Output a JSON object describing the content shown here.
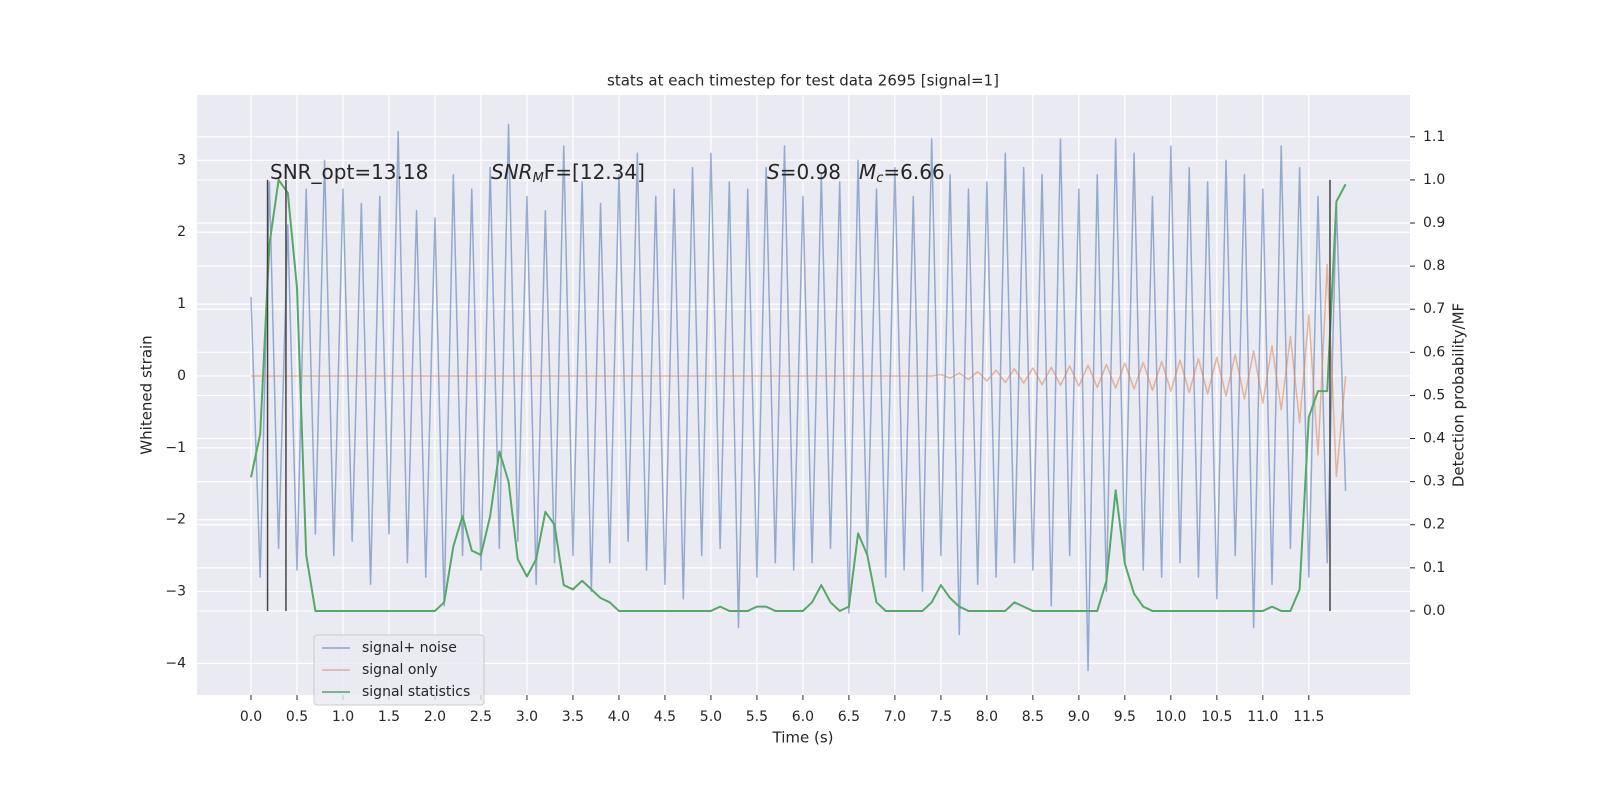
{
  "chart_data": {
    "type": "line",
    "title": "stats at each timestep for test data 2695 [signal=1]",
    "xlabel": "Time (s)",
    "ylabel": "Whitened strain",
    "y2label": "Detection probability/MF",
    "x": [
      0.0,
      0.1,
      0.2,
      0.3,
      0.4,
      0.5,
      0.6,
      0.7,
      0.8,
      0.9,
      1.0,
      1.1,
      1.2,
      1.3,
      1.4,
      1.5,
      1.6,
      1.7,
      1.8,
      1.9,
      2.0,
      2.1,
      2.2,
      2.3,
      2.4,
      2.5,
      2.6,
      2.7,
      2.8,
      2.9,
      3.0,
      3.1,
      3.2,
      3.3,
      3.4,
      3.5,
      3.6,
      3.7,
      3.8,
      3.9,
      4.0,
      4.1,
      4.2,
      4.3,
      4.4,
      4.5,
      4.6,
      4.7,
      4.8,
      4.9,
      5.0,
      5.1,
      5.2,
      5.3,
      5.4,
      5.5,
      5.6,
      5.7,
      5.8,
      5.9,
      6.0,
      6.1,
      6.2,
      6.3,
      6.4,
      6.5,
      6.6,
      6.7,
      6.8,
      6.9,
      7.0,
      7.1,
      7.2,
      7.3,
      7.4,
      7.5,
      7.6,
      7.7,
      7.8,
      7.9,
      8.0,
      8.1,
      8.2,
      8.3,
      8.4,
      8.5,
      8.6,
      8.7,
      8.8,
      8.9,
      9.0,
      9.1,
      9.2,
      9.3,
      9.4,
      9.5,
      9.6,
      9.7,
      9.8,
      9.9,
      10.0,
      10.1,
      10.2,
      10.3,
      10.4,
      10.5,
      10.6,
      10.7,
      10.8,
      10.9,
      11.0,
      11.1,
      11.2,
      11.3,
      11.4,
      11.5,
      11.6,
      11.7,
      11.8,
      11.9
    ],
    "series": [
      {
        "name": "signal+ noise",
        "color": "#4c72b0",
        "values": [
          1.1,
          -2.8,
          2.7,
          -2.4,
          2.1,
          -2.7,
          2.6,
          -2.2,
          3.0,
          -2.5,
          2.6,
          -2.3,
          2.4,
          -2.9,
          2.5,
          -2.2,
          3.4,
          -2.6,
          2.3,
          -2.8,
          2.2,
          -3.2,
          2.8,
          -2.5,
          2.6,
          -2.7,
          2.9,
          -2.4,
          3.5,
          -2.3,
          2.5,
          -2.9,
          2.3,
          -2.6,
          3.2,
          -2.5,
          2.7,
          -3.0,
          2.4,
          -2.6,
          2.8,
          -2.3,
          3.1,
          -2.7,
          2.5,
          -2.9,
          2.6,
          -3.1,
          2.9,
          -2.5,
          3.1,
          -2.4,
          2.7,
          -3.5,
          2.6,
          -2.8,
          2.9,
          -2.6,
          3.2,
          -2.7,
          2.5,
          -2.6,
          2.8,
          -2.4,
          2.7,
          -3.3,
          3.0,
          -2.5,
          2.6,
          -2.8,
          2.9,
          -2.7,
          2.5,
          -3.0,
          3.3,
          -2.5,
          2.8,
          -3.6,
          2.6,
          -2.9,
          2.7,
          -2.8,
          3.1,
          -2.6,
          2.9,
          -2.7,
          2.8,
          -3.2,
          3.3,
          -2.5,
          2.6,
          -4.1,
          2.8,
          -3.0,
          3.3,
          -2.6,
          3.1,
          -2.7,
          2.5,
          -2.8,
          3.2,
          -2.6,
          2.9,
          -2.8,
          2.7,
          -3.1,
          3.0,
          -2.5,
          2.8,
          -3.5,
          2.6,
          -2.9,
          3.2,
          -2.4,
          2.9,
          -2.8,
          2.5,
          -2.6,
          2.4,
          -1.6
        ]
      },
      {
        "name": "signal only",
        "color": "#dd8452",
        "values": [
          0,
          0,
          0,
          0,
          0,
          0,
          0,
          0,
          0,
          0,
          0,
          0,
          0,
          0,
          0,
          0,
          0,
          0,
          0,
          0,
          0,
          0,
          0,
          0,
          0,
          0,
          0,
          0,
          0,
          0,
          0,
          0,
          0,
          0,
          0,
          0,
          0,
          0,
          0,
          0,
          0,
          0,
          0,
          0,
          0,
          0,
          0,
          0,
          0,
          0,
          0,
          0,
          0,
          0,
          0,
          0,
          0,
          0,
          0,
          0,
          0,
          0,
          0,
          0,
          0,
          0,
          0,
          0,
          0,
          0,
          0,
          0,
          0,
          0,
          0,
          0.02,
          -0.03,
          0.04,
          -0.05,
          0.06,
          -0.07,
          0.08,
          -0.09,
          0.1,
          -0.1,
          0.11,
          -0.12,
          0.12,
          -0.13,
          0.14,
          -0.14,
          0.15,
          -0.16,
          0.16,
          -0.17,
          0.18,
          -0.18,
          0.19,
          -0.2,
          0.2,
          -0.21,
          0.22,
          -0.23,
          0.24,
          -0.25,
          0.26,
          -0.28,
          0.3,
          -0.32,
          0.35,
          -0.38,
          0.42,
          -0.47,
          0.55,
          -0.65,
          0.85,
          -1.1,
          1.55,
          -1.4,
          0
        ]
      },
      {
        "name": "signal statistics",
        "color": "#55a868",
        "axis": "y2",
        "values": [
          0.31,
          0.41,
          0.85,
          1.0,
          0.97,
          0.75,
          0.13,
          0,
          0,
          0,
          0,
          0,
          0,
          0,
          0,
          0,
          0,
          0,
          0,
          0,
          0,
          0.02,
          0.15,
          0.22,
          0.14,
          0.13,
          0.22,
          0.37,
          0.3,
          0.12,
          0.08,
          0.12,
          0.23,
          0.2,
          0.06,
          0.05,
          0.07,
          0.05,
          0.03,
          0.02,
          0,
          0,
          0,
          0,
          0,
          0,
          0,
          0,
          0,
          0,
          0,
          0.01,
          0,
          0,
          0,
          0.01,
          0.01,
          0,
          0,
          0,
          0,
          0.02,
          0.06,
          0.02,
          0,
          0.01,
          0.18,
          0.13,
          0.02,
          0,
          0,
          0,
          0,
          0,
          0.02,
          0.06,
          0.03,
          0.01,
          0,
          0,
          0,
          0,
          0,
          0.02,
          0.01,
          0,
          0,
          0,
          0,
          0,
          0,
          0,
          0,
          0.07,
          0.28,
          0.11,
          0.04,
          0.01,
          0,
          0,
          0,
          0,
          0,
          0,
          0,
          0,
          0,
          0,
          0,
          0,
          0,
          0.01,
          0,
          0,
          0.05,
          0.45,
          0.51,
          0.51,
          0.95,
          0.99
        ]
      }
    ],
    "vlines": {
      "x": [
        0.18,
        0.38,
        11.73
      ],
      "ymin": 0,
      "ymax": 1,
      "axis": "y2",
      "color": "#444444"
    },
    "annotations": [
      [
        "SNR_opt=13.18"
      ],
      [
        "SNR",
        "M",
        "F=[12.34]"
      ],
      [
        "S",
        "=0.98"
      ],
      [
        "M",
        "c",
        "=6.66"
      ]
    ],
    "xlim": [
      -0.587,
      12.6
    ],
    "xticks": [
      {
        "value": 0,
        "label": "0.0"
      },
      {
        "value": 0.5,
        "label": "0.5"
      },
      {
        "value": 1,
        "label": "1.0"
      },
      {
        "value": 1.5,
        "label": "1.5"
      },
      {
        "value": 2,
        "label": "2.0"
      },
      {
        "value": 2.5,
        "label": "2.5"
      },
      {
        "value": 3,
        "label": "3.0"
      },
      {
        "value": 3.5,
        "label": "3.5"
      },
      {
        "value": 4,
        "label": "4.0"
      },
      {
        "value": 4.5,
        "label": "4.5"
      },
      {
        "value": 5,
        "label": "5.0"
      },
      {
        "value": 5.5,
        "label": "5.5"
      },
      {
        "value": 6,
        "label": "6.0"
      },
      {
        "value": 6.5,
        "label": "6.5"
      },
      {
        "value": 7,
        "label": "7.0"
      },
      {
        "value": 7.5,
        "label": "7.5"
      },
      {
        "value": 8,
        "label": "8.0"
      },
      {
        "value": 8.5,
        "label": "8.5"
      },
      {
        "value": 9,
        "label": "9.0"
      },
      {
        "value": 9.5,
        "label": "9.5"
      },
      {
        "value": 10,
        "label": "10.0"
      },
      {
        "value": 10.5,
        "label": "10.5"
      },
      {
        "value": 11,
        "label": "11.0"
      },
      {
        "value": 11.5,
        "label": "11.5"
      }
    ],
    "ylim": [
      -4.44,
      3.91
    ],
    "yticks": [
      {
        "value": -4,
        "label": "−4"
      },
      {
        "value": -3,
        "label": "−3"
      },
      {
        "value": -2,
        "label": "−2"
      },
      {
        "value": -1,
        "label": "−1"
      },
      0,
      1,
      2,
      3
    ],
    "y2lim": [
      -0.195,
      1.197
    ],
    "y2ticks": [
      {
        "value": 0,
        "label": "0.0"
      },
      {
        "value": 0.1,
        "label": "0.1"
      },
      {
        "value": 0.2,
        "label": "0.2"
      },
      {
        "value": 0.3,
        "label": "0.3"
      },
      {
        "value": 0.4,
        "label": "0.4"
      },
      {
        "value": 0.5,
        "label": "0.5"
      },
      {
        "value": 0.6,
        "label": "0.6"
      },
      {
        "value": 0.7,
        "label": "0.7"
      },
      {
        "value": 0.8,
        "label": "0.8"
      },
      {
        "value": 0.9,
        "label": "0.9"
      },
      {
        "value": 1,
        "label": "1.0"
      },
      {
        "value": 1.1,
        "label": "1.1"
      }
    ],
    "grid": true,
    "legend": "lower left"
  }
}
